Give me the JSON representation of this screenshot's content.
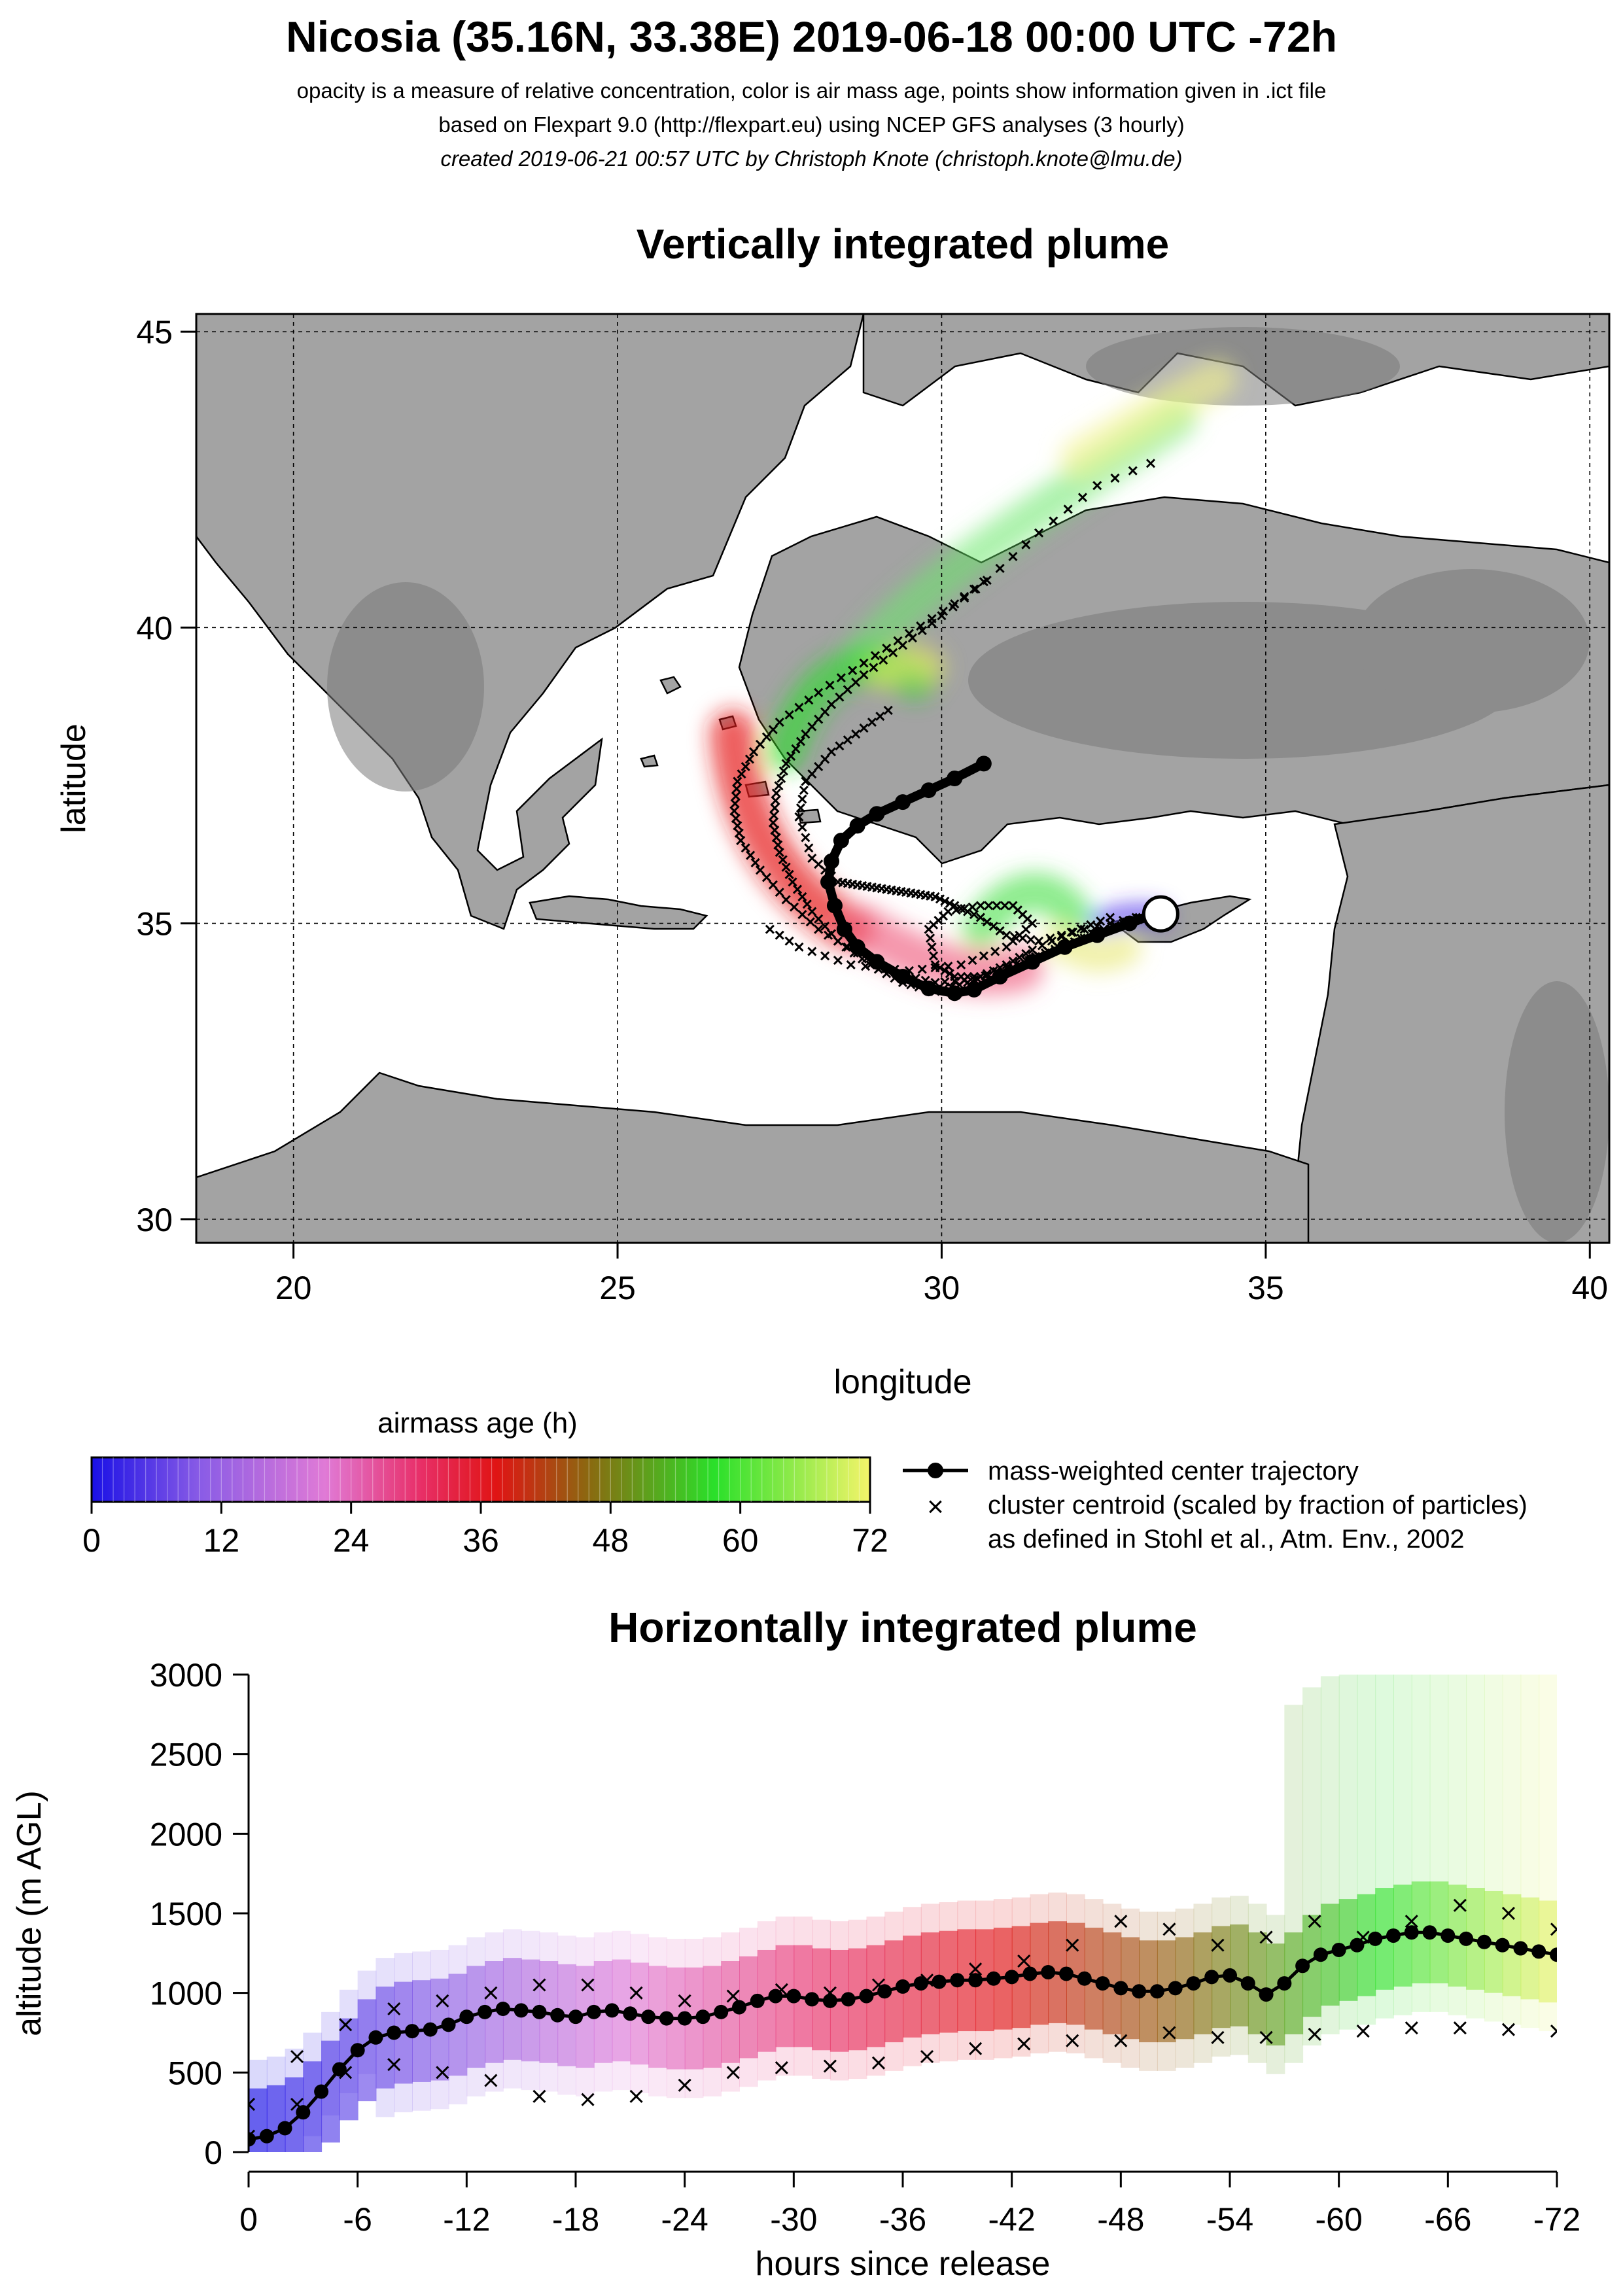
{
  "header": {
    "title": "Nicosia (35.16N, 33.38E) 2019-06-18 00:00 UTC -72h",
    "line1": "opacity is a measure of relative concentration, color is air mass age, points show information given in .ict file",
    "line2": "based on Flexpart 9.0 (http://flexpart.eu) using NCEP GFS analyses (3 hourly)",
    "line3": "created 2019-06-21 00:57 UTC by Christoph Knote (christoph.knote@lmu.de)"
  },
  "colors": {
    "land": "#9a9a9a",
    "sea": "#ffffff",
    "trajectory": "#000000",
    "age_scale": [
      "#1a10e6",
      "#8a5ce6",
      "#e07ad6",
      "#e8306a",
      "#e01414",
      "#8a6a10",
      "#2ae02a",
      "#f4f46a"
    ]
  },
  "chart_data": [
    {
      "type": "scatter",
      "title": "Vertically integrated plume",
      "xlabel": "longitude",
      "ylabel": "latitude",
      "xlim": [
        18.5,
        40.3
      ],
      "ylim": [
        29.6,
        45.3
      ],
      "xticks": [
        "20",
        "25",
        "30",
        "35",
        "40"
      ],
      "yticks": [
        "30",
        "35",
        "40",
        "45"
      ],
      "grid": true,
      "release_site": {
        "lon": 33.38,
        "lat": 35.16
      },
      "center_trajectory": {
        "lon": [
          33.38,
          32.9,
          32.4,
          31.9,
          31.4,
          30.9,
          30.5,
          30.2,
          29.8,
          29.4,
          29.0,
          28.7,
          28.5,
          28.35,
          28.25,
          28.3,
          28.45,
          28.7,
          29.0,
          29.4,
          29.8,
          30.2,
          30.65
        ],
        "lat": [
          35.2,
          35.0,
          34.8,
          34.6,
          34.35,
          34.1,
          33.88,
          33.82,
          33.9,
          34.1,
          34.35,
          34.6,
          34.9,
          35.3,
          35.7,
          36.05,
          36.4,
          36.65,
          36.85,
          37.05,
          37.25,
          37.45,
          37.7
        ]
      },
      "cluster_tracks": [
        {
          "lon": [
            33.3,
            32.8,
            32.2,
            31.6,
            31.0,
            30.4,
            29.9,
            29.4,
            28.9,
            28.4,
            28.0,
            27.7,
            27.5,
            27.4,
            27.45,
            27.6,
            27.9,
            28.3,
            28.8,
            29.4,
            30.0,
            30.7,
            31.5,
            32.4,
            33.5
          ],
          "lat": [
            35.2,
            35.0,
            34.75,
            34.5,
            34.25,
            34.0,
            33.85,
            34.0,
            34.3,
            34.7,
            35.2,
            35.7,
            36.2,
            36.7,
            37.2,
            37.7,
            38.2,
            38.7,
            39.2,
            39.7,
            40.2,
            40.8,
            41.6,
            42.4,
            42.9
          ]
        },
        {
          "lon": [
            33.2,
            32.5,
            31.8,
            31.2,
            30.5,
            29.9,
            29.3,
            28.7,
            28.1,
            27.6,
            27.2,
            26.9,
            26.8,
            26.85,
            27.1,
            27.5,
            28.1,
            28.8,
            29.5,
            30.2,
            30.8
          ],
          "lat": [
            35.15,
            34.9,
            34.6,
            34.3,
            34.05,
            34.0,
            34.15,
            34.5,
            34.9,
            35.4,
            35.9,
            36.4,
            36.9,
            37.4,
            37.9,
            38.4,
            38.9,
            39.4,
            39.9,
            40.4,
            40.9
          ]
        },
        {
          "lon": [
            33.0,
            32.2,
            31.5,
            31.0,
            30.6,
            30.2,
            29.9,
            29.6,
            29.3,
            29.0,
            28.7,
            28.4,
            28.0,
            27.8,
            27.9,
            28.3,
            28.8,
            29.3
          ],
          "lat": [
            35.1,
            34.9,
            34.7,
            34.8,
            35.1,
            35.3,
            35.45,
            35.5,
            35.55,
            35.6,
            35.65,
            35.7,
            36.1,
            36.8,
            37.4,
            37.9,
            38.3,
            38.7
          ]
        },
        {
          "lon": [
            32.6,
            32.0,
            31.4,
            31.0,
            30.6,
            30.2,
            29.9,
            29.8,
            30.1,
            30.6,
            31.1,
            31.4,
            31.0,
            30.3,
            29.5,
            28.6,
            27.8,
            27.2
          ],
          "lat": [
            35.1,
            34.85,
            34.55,
            34.3,
            34.1,
            34.1,
            34.3,
            34.9,
            35.2,
            35.3,
            35.3,
            35.0,
            34.6,
            34.3,
            34.2,
            34.3,
            34.6,
            35.0
          ]
        }
      ]
    },
    {
      "type": "line",
      "title": "Horizontally integrated plume",
      "xlabel": "hours since release",
      "ylabel": "altitude (m AGL)",
      "xlim": [
        0,
        -72
      ],
      "ylim": [
        0,
        3000
      ],
      "xticks": [
        "0",
        "-6",
        "-12",
        "-18",
        "-24",
        "-30",
        "-36",
        "-42",
        "-48",
        "-54",
        "-60",
        "-66",
        "-72"
      ],
      "yticks": [
        "0",
        "500",
        "1000",
        "1500",
        "2000",
        "2500",
        "3000"
      ],
      "series": [
        {
          "name": "mass-weighted center trajectory",
          "x": [
            0,
            -1,
            -2,
            -3,
            -4,
            -5,
            -6,
            -7,
            -8,
            -9,
            -10,
            -11,
            -12,
            -13,
            -14,
            -15,
            -16,
            -17,
            -18,
            -19,
            -20,
            -21,
            -22,
            -23,
            -24,
            -25,
            -26,
            -27,
            -28,
            -29,
            -30,
            -31,
            -32,
            -33,
            -34,
            -35,
            -36,
            -37,
            -38,
            -39,
            -40,
            -41,
            -42,
            -43,
            -44,
            -45,
            -46,
            -47,
            -48,
            -49,
            -50,
            -51,
            -52,
            -53,
            -54,
            -55,
            -56,
            -57,
            -58,
            -59,
            -60,
            -61,
            -62,
            -63,
            -64,
            -65,
            -66,
            -67,
            -68,
            -69,
            -70,
            -71,
            -72
          ],
          "y": [
            80,
            100,
            150,
            250,
            380,
            520,
            640,
            720,
            750,
            760,
            770,
            800,
            850,
            880,
            900,
            890,
            880,
            860,
            850,
            880,
            890,
            870,
            850,
            840,
            840,
            850,
            880,
            910,
            950,
            980,
            980,
            960,
            950,
            960,
            980,
            1010,
            1040,
            1060,
            1070,
            1080,
            1080,
            1090,
            1100,
            1120,
            1130,
            1120,
            1090,
            1060,
            1030,
            1010,
            1010,
            1030,
            1060,
            1100,
            1110,
            1060,
            990,
            1060,
            1170,
            1240,
            1270,
            1300,
            1340,
            1360,
            1380,
            1380,
            1360,
            1340,
            1320,
            1300,
            1280,
            1260,
            1240
          ]
        }
      ],
      "cluster_upper": [
        300,
        600,
        800,
        900,
        950,
        1000,
        1050,
        1050,
        1000,
        950,
        980,
        1020,
        1000,
        1050,
        1080,
        1150,
        1200,
        1300,
        1450,
        1400,
        1300,
        1350,
        1450,
        1350,
        1450,
        1550,
        1500,
        1400
      ],
      "cluster_lower": [
        100,
        300,
        500,
        550,
        500,
        450,
        350,
        330,
        350,
        420,
        500,
        530,
        540,
        560,
        600,
        650,
        680,
        700,
        700,
        750,
        720,
        720,
        740,
        760,
        780,
        780,
        770,
        760
      ]
    }
  ],
  "colorbar": {
    "title": "airmass age (h)",
    "min": 0,
    "max": 72,
    "ticks": [
      "0",
      "12",
      "24",
      "36",
      "48",
      "60",
      "72"
    ]
  },
  "legend": {
    "line_entry": "mass-weighted center trajectory",
    "cross_entry_1": "cluster centroid (scaled by fraction of particles)",
    "cross_entry_2": "as defined in Stohl et al., Atm. Env., 2002"
  }
}
